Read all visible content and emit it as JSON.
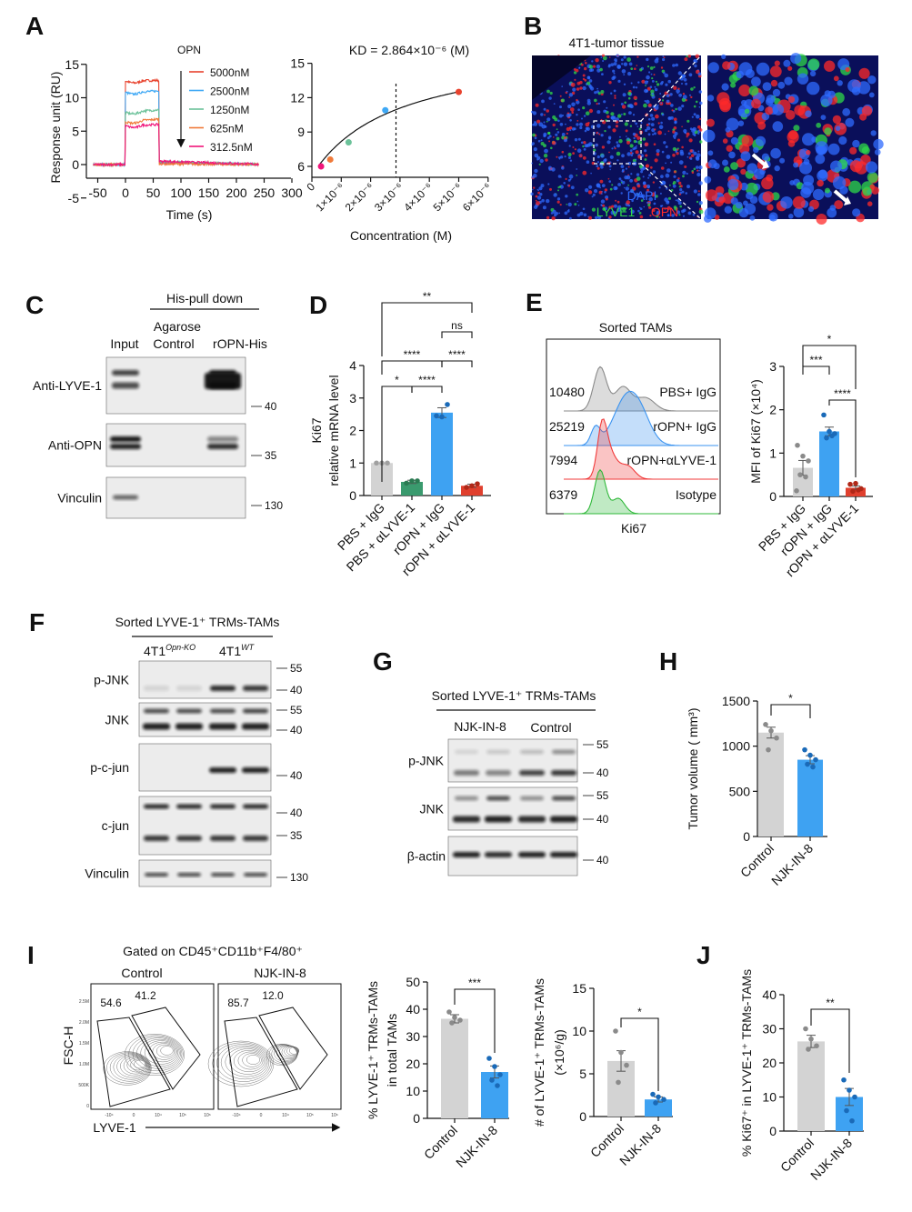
{
  "panel_letters": [
    "A",
    "B",
    "C",
    "D",
    "E",
    "F",
    "G",
    "H",
    "I",
    "J"
  ],
  "panel_a": {
    "legend_title": "OPN",
    "legend": [
      {
        "label": "5000nM",
        "color": "#e8432e"
      },
      {
        "label": "2500nM",
        "color": "#3ea8f5"
      },
      {
        "label": "1250nM",
        "color": "#6cc29a"
      },
      {
        "label": "625nM",
        "color": "#f07a3a"
      },
      {
        "label": "312.5nM",
        "color": "#f0157a"
      }
    ],
    "kd_prefix": "K",
    "kd_sub": "D",
    "kd_value": " = 2.864×10",
    "kd_exp": "-6",
    "kd_unit": " (M)"
  },
  "panel_b": {
    "title": "4T1-tumor tissue",
    "stain_dapi": "DAPI",
    "stain_lyve1": "LYVE1",
    "stain_opn": "OPN",
    "colors": {
      "dapi": "#2f6bff",
      "lyve1": "#2fd84a",
      "opn": "#ff2a2a"
    }
  },
  "panel_c": {
    "header": "His-pull down",
    "lanes": [
      "Input",
      "Agarose",
      "Control",
      "rOPN-His"
    ],
    "rows": [
      {
        "label": "Anti-LYVE-1",
        "markers": [
          "40"
        ]
      },
      {
        "label": "Anti-OPN",
        "markers": [
          "35"
        ]
      },
      {
        "label": "Vinculin",
        "markers": [
          "130"
        ]
      }
    ]
  },
  "panel_e": {
    "title": "Sorted TAMs",
    "xlabel": "Ki67",
    "histograms": [
      {
        "label": "PBS+ IgG",
        "mfi": "10480",
        "color": "#8a8a8a"
      },
      {
        "label": "rOPN+ IgG",
        "mfi": "25219",
        "color": "#3a93f0"
      },
      {
        "label": "rOPN+αLYVE-1",
        "mfi": "7994",
        "color": "#f03a3a"
      },
      {
        "label": "Isotype",
        "mfi": "6379",
        "color": "#2fb83a"
      }
    ]
  },
  "panel_f": {
    "header": "Sorted LYVE-1⁺ TRMs-TAMs",
    "group1": "4T1",
    "group1_sup": "Opn-KO",
    "group2": "4T1",
    "group2_sup": "WT",
    "rows": [
      {
        "label": "p-JNK",
        "markers": [
          "55",
          "40"
        ]
      },
      {
        "label": "JNK",
        "markers": [
          "55",
          "40"
        ]
      },
      {
        "label": "p-c-jun",
        "markers": [
          "40"
        ]
      },
      {
        "label": "c-jun",
        "markers": [
          "40",
          "35"
        ]
      },
      {
        "label": "Vinculin",
        "markers": [
          "130"
        ]
      }
    ]
  },
  "panel_g": {
    "header": "Sorted LYVE-1⁺ TRMs-TAMs",
    "groups": [
      "NJK-IN-8",
      "Control"
    ],
    "rows": [
      {
        "label": "p-JNK",
        "markers": [
          "55",
          "40"
        ]
      },
      {
        "label": "JNK",
        "markers": [
          "55",
          "40"
        ]
      },
      {
        "label": "β-actin",
        "markers": [
          "40"
        ]
      }
    ]
  },
  "panel_i": {
    "title": "Gated on CD45⁺CD11b⁺F4/80⁺",
    "plots": [
      {
        "label": "Control",
        "gate_left": "54.6",
        "gate_right": "41.2"
      },
      {
        "label": "NJK-IN-8",
        "gate_left": "85.7",
        "gate_right": "12.0"
      }
    ],
    "ylabel": "FSC-H",
    "xlabel": "LYVE-1",
    "y_ticks": [
      "2.5M",
      "2.0M",
      "1.5M",
      "1.0M",
      "500K",
      "0"
    ],
    "x_ticks": [
      "-10⁴",
      "0",
      "10⁴",
      "10⁵",
      "10⁶"
    ]
  },
  "chart_data": [
    {
      "type": "line",
      "title": "",
      "xlabel": "Time (s)",
      "ylabel": [
        "Response unit (RU)"
      ],
      "xlim": [
        -50,
        300
      ],
      "ylim": [
        -5,
        15
      ],
      "xticks": [
        -50,
        0,
        50,
        100,
        150,
        200,
        250,
        300
      ],
      "xtick_labels": [
        "-50",
        "0",
        "50",
        "100",
        "150",
        "200",
        "250",
        "300"
      ],
      "yticks": [
        -5,
        0,
        5,
        10,
        15
      ],
      "ytick_labels": [
        "-5",
        "0",
        "5",
        "10",
        "15"
      ],
      "annotation": "OPN injection arrow at 100 s",
      "series": [
        {
          "name": "5000nM",
          "x": [
            -60,
            0,
            0.5,
            60,
            60.5,
            240
          ],
          "y": [
            0,
            0,
            12.5,
            12.6,
            0.3,
            0
          ]
        },
        {
          "name": "2500nM",
          "x": [
            -60,
            0,
            0.5,
            60,
            60.5,
            240
          ],
          "y": [
            0,
            0,
            10.8,
            11.0,
            0.4,
            0
          ]
        },
        {
          "name": "1250nM",
          "x": [
            -60,
            0,
            0.5,
            60,
            60.5,
            240
          ],
          "y": [
            0,
            0,
            7.8,
            8.2,
            0.4,
            0
          ]
        },
        {
          "name": "625nM",
          "x": [
            -60,
            0,
            0.5,
            60,
            60.5,
            240
          ],
          "y": [
            0,
            0,
            6.4,
            6.8,
            0.1,
            0
          ]
        },
        {
          "name": "312.5nM",
          "x": [
            -60,
            0,
            0.5,
            60,
            60.5,
            240
          ],
          "y": [
            0,
            0,
            5.8,
            6.0,
            0.5,
            0
          ]
        }
      ]
    },
    {
      "type": "scatter",
      "title": "KD = 2.864×10⁻⁶ (M)",
      "xlabel": "Concentration (M)",
      "ylabel": [],
      "xlim": [
        0,
        6e-06
      ],
      "ylim": [
        5,
        15
      ],
      "xticks": [
        0,
        1e-06,
        2e-06,
        3e-06,
        4e-06,
        5e-06,
        6e-06
      ],
      "xtick_labels": [
        "0",
        "1×10⁻⁶",
        "2×10⁻⁶",
        "3×10⁻⁶",
        "4×10⁻⁶",
        "5×10⁻⁶",
        "6×10⁻⁶"
      ],
      "yticks": [
        6,
        9,
        12,
        15
      ],
      "ytick_labels": [
        "6",
        "9",
        "12",
        "15"
      ],
      "kd": 2.864e-06,
      "points": [
        {
          "x": 3.125e-07,
          "y": 6.0,
          "color": "#f0157a"
        },
        {
          "x": 6.25e-07,
          "y": 6.6,
          "color": "#f07a3a"
        },
        {
          "x": 1.25e-06,
          "y": 8.1,
          "color": "#6cc29a"
        },
        {
          "x": 2.5e-06,
          "y": 10.9,
          "color": "#3ea8f5"
        },
        {
          "x": 5e-06,
          "y": 12.5,
          "color": "#e8432e"
        }
      ]
    },
    {
      "type": "bar",
      "title": "",
      "ylabel": [
        "Ki67",
        "relative mRNA level"
      ],
      "categories": [
        "PBS + IgG",
        "PBS + αLYVE-1",
        "rOPN + IgG",
        "rOPN + αLYVE-1"
      ],
      "values": [
        1.0,
        0.42,
        2.55,
        0.3
      ],
      "sem": [
        0,
        0.05,
        0.15,
        0.05
      ],
      "points": [
        [
          1.0,
          1.0,
          1.0
        ],
        [
          0.38,
          0.45,
          0.45
        ],
        [
          2.45,
          2.42,
          2.8
        ],
        [
          0.25,
          0.3,
          0.36
        ]
      ],
      "colors": [
        "#d3d3d3",
        "#3a9a6e",
        "#3ea2f2",
        "#e0402e"
      ],
      "point_colors": [
        "#a0a0a0",
        "#2a7a52",
        "#1a6ab8",
        "#b02818"
      ],
      "ylim": [
        0,
        4
      ],
      "yticks": [
        0,
        1,
        2,
        3,
        4
      ],
      "ytick_labels": [
        "0",
        "1",
        "2",
        "3",
        "4"
      ],
      "significance": [
        {
          "from": 0,
          "to": 3,
          "label": "**"
        },
        {
          "from": 2,
          "to": 3,
          "label": "ns"
        },
        {
          "from": 0,
          "to": 2,
          "label": "****"
        },
        {
          "from": 2,
          "to": 3,
          "label": "****"
        },
        {
          "from": 0,
          "to": 1,
          "label": "*"
        },
        {
          "from": 1,
          "to": 2,
          "label": "****"
        }
      ]
    },
    {
      "type": "bar",
      "title": "",
      "ylabel": [
        "MFI of Ki67 (×10⁴)"
      ],
      "categories": [
        "PBS + IgG",
        "rOPN + IgG",
        "rOPN + αLYVE-1"
      ],
      "values": [
        0.66,
        1.5,
        0.2
      ],
      "sem": [
        0.17,
        0.1,
        0.04
      ],
      "points": [
        [
          1.18,
          0.93,
          0.82,
          0.5,
          0.45,
          0.13
        ],
        [
          1.88,
          1.5,
          1.45,
          1.35,
          1.4
        ],
        [
          0.28,
          0.3,
          0.18,
          0.12,
          0.15
        ]
      ],
      "colors": [
        "#d3d3d3",
        "#3ea2f2",
        "#e0402e"
      ],
      "point_colors": [
        "#8a8a8a",
        "#1a6ab8",
        "#b02818"
      ],
      "ylim": [
        0,
        3
      ],
      "yticks": [
        0,
        1,
        2,
        3
      ],
      "ytick_labels": [
        "0",
        "1",
        "2",
        "3"
      ],
      "significance": [
        {
          "from": 0,
          "to": 2,
          "label": "*"
        },
        {
          "from": 0,
          "to": 1,
          "label": "***"
        },
        {
          "from": 1,
          "to": 2,
          "label": "****"
        }
      ]
    },
    {
      "type": "bar",
      "title": "",
      "ylabel": [
        "Tumor volume ( mm³)"
      ],
      "categories": [
        "Control",
        "NJK-IN-8"
      ],
      "values": [
        1150,
        850
      ],
      "sem": [
        60,
        45
      ],
      "points": [
        [
          1240,
          1170,
          1090,
          960
        ],
        [
          960,
          900,
          850,
          800,
          770
        ]
      ],
      "colors": [
        "#d3d3d3",
        "#3ea2f2"
      ],
      "point_colors": [
        "#8a8a8a",
        "#1a6ab8"
      ],
      "ylim": [
        0,
        1500
      ],
      "yticks": [
        0,
        500,
        1000,
        1500
      ],
      "ytick_labels": [
        "0",
        "500",
        "1000",
        "1500"
      ],
      "significance": [
        {
          "from": 0,
          "to": 1,
          "label": "*"
        }
      ]
    },
    {
      "type": "bar",
      "title": "",
      "ylabel": [
        "% LYVE-1⁺ TRMs-TAMs",
        "in total TAMs"
      ],
      "categories": [
        "Control",
        "NJK-IN-8"
      ],
      "values": [
        36.5,
        17
      ],
      "sem": [
        1.5,
        2.2
      ],
      "points": [
        [
          39,
          37,
          36,
          35
        ],
        [
          22,
          19,
          16,
          14,
          12
        ]
      ],
      "colors": [
        "#d3d3d3",
        "#3ea2f2"
      ],
      "point_colors": [
        "#8a8a8a",
        "#1a6ab8"
      ],
      "ylim": [
        0,
        50
      ],
      "yticks": [
        0,
        10,
        20,
        30,
        40,
        50
      ],
      "ytick_labels": [
        "0",
        "10",
        "20",
        "30",
        "40",
        "50"
      ],
      "significance": [
        {
          "from": 0,
          "to": 1,
          "label": "***"
        }
      ]
    },
    {
      "type": "bar",
      "title": "",
      "ylabel": [
        "# of LYVE-1⁺ TRMs-TAMs",
        "(×10⁶/g)"
      ],
      "categories": [
        "Control",
        "NJK-IN-8"
      ],
      "values": [
        6.5,
        2.0
      ],
      "sem": [
        1.2,
        0.3
      ],
      "points": [
        [
          10,
          7.5,
          6,
          4
        ],
        [
          2.6,
          2.3,
          2.0,
          1.6
        ]
      ],
      "colors": [
        "#d3d3d3",
        "#3ea2f2"
      ],
      "point_colors": [
        "#8a8a8a",
        "#1a6ab8"
      ],
      "ylim": [
        0,
        15
      ],
      "yticks": [
        0,
        5,
        10,
        15
      ],
      "ytick_labels": [
        "0",
        "5",
        "10",
        "15"
      ],
      "significance": [
        {
          "from": 0,
          "to": 1,
          "label": "*"
        }
      ]
    },
    {
      "type": "bar",
      "title": "",
      "ylabel": [
        "% Ki67⁺ in LYVE-1⁺ TRMs-TAMs"
      ],
      "categories": [
        "Control",
        "NJK-IN-8"
      ],
      "values": [
        26.3,
        10
      ],
      "sem": [
        1.8,
        2.5
      ],
      "points": [
        [
          30,
          27,
          25,
          24
        ],
        [
          15,
          12,
          10,
          6,
          3
        ]
      ],
      "colors": [
        "#d3d3d3",
        "#3ea2f2"
      ],
      "point_colors": [
        "#8a8a8a",
        "#1a6ab8"
      ],
      "ylim": [
        0,
        40
      ],
      "yticks": [
        0,
        10,
        20,
        30,
        40
      ],
      "ytick_labels": [
        "0",
        "10",
        "20",
        "30",
        "40"
      ],
      "significance": [
        {
          "from": 0,
          "to": 1,
          "label": "**"
        }
      ]
    }
  ]
}
